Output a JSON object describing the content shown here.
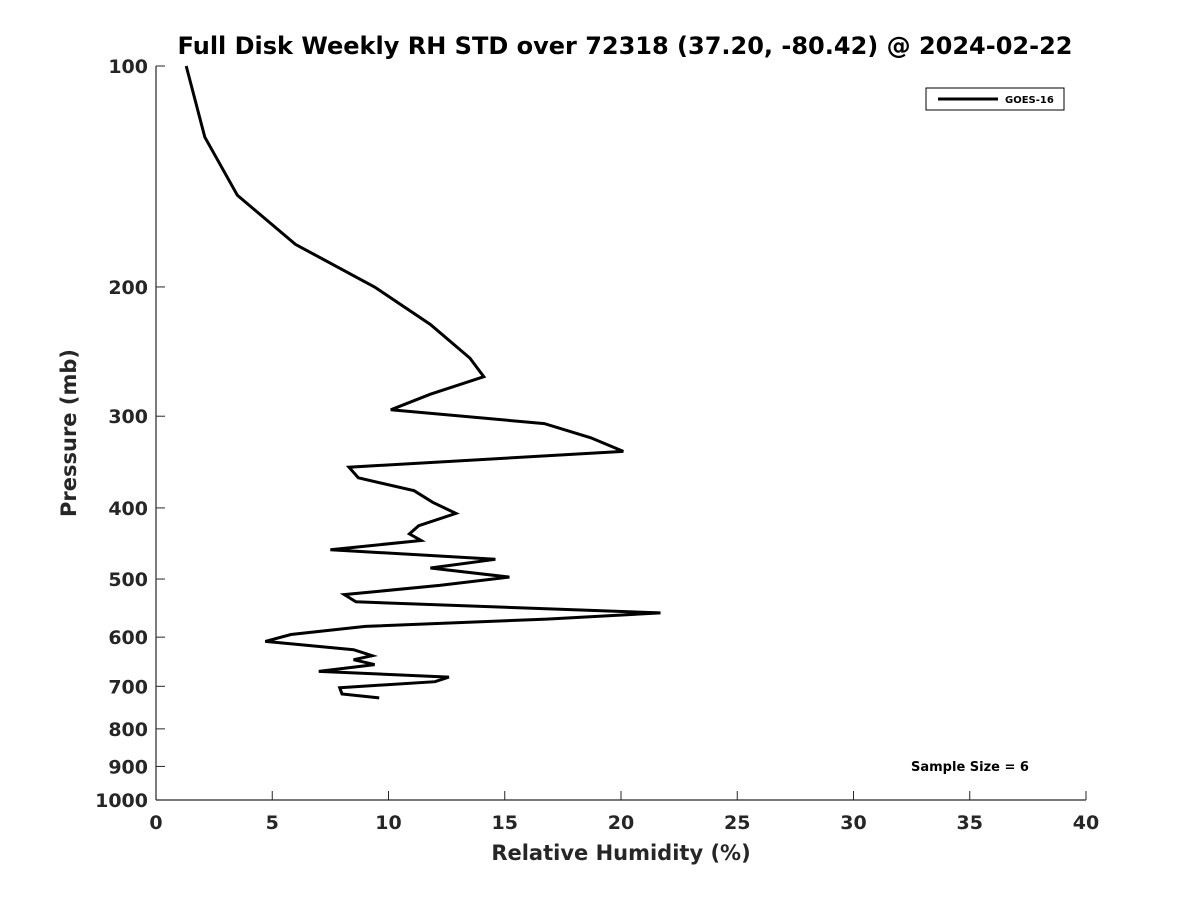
{
  "chart_data": {
    "type": "line",
    "title": "Full Disk Weekly RH STD over 72318 (37.20, -80.42) @ 2024-02-22",
    "xlabel": "Relative Humidity (%)",
    "ylabel": "Pressure (mb)",
    "xlim": [
      0,
      40
    ],
    "ylim": [
      100,
      1000
    ],
    "yscale": "log",
    "y_reversed": true,
    "grid": false,
    "legend_position": "top-right",
    "x_ticks": [
      0,
      5,
      10,
      15,
      20,
      25,
      30,
      35,
      40
    ],
    "x_tick_labels": [
      "0",
      "5",
      "10",
      "15",
      "20",
      "25",
      "30",
      "35",
      "40"
    ],
    "y_ticks": [
      100,
      200,
      300,
      400,
      500,
      600,
      700,
      800,
      900,
      1000
    ],
    "y_tick_labels": [
      "100",
      "200",
      "300",
      "400",
      "500",
      "600",
      "700",
      "800",
      "900",
      "1000"
    ],
    "annotation": "Sample Size = 6",
    "series": [
      {
        "name": "GOES-16",
        "color": "#000000",
        "points": [
          [
            1.3,
            100
          ],
          [
            2.1,
            125
          ],
          [
            3.5,
            150
          ],
          [
            6.0,
            175
          ],
          [
            9.4,
            200
          ],
          [
            11.8,
            225
          ],
          [
            13.5,
            250
          ],
          [
            14.1,
            265
          ],
          [
            11.8,
            280
          ],
          [
            10.1,
            294
          ],
          [
            16.7,
            307
          ],
          [
            18.7,
            321
          ],
          [
            20.1,
            335
          ],
          [
            8.3,
            352
          ],
          [
            8.7,
            364
          ],
          [
            11.1,
            379
          ],
          [
            11.9,
            393
          ],
          [
            12.9,
            407
          ],
          [
            11.3,
            423
          ],
          [
            10.9,
            434
          ],
          [
            11.4,
            443
          ],
          [
            7.5,
            456
          ],
          [
            14.6,
            470
          ],
          [
            11.8,
            483
          ],
          [
            15.2,
            497
          ],
          [
            12.2,
            510
          ],
          [
            8.1,
            525
          ],
          [
            8.6,
            537
          ],
          [
            21.7,
            556
          ],
          [
            16.8,
            567
          ],
          [
            9.0,
            580
          ],
          [
            5.8,
            595
          ],
          [
            4.7,
            608
          ],
          [
            8.5,
            624
          ],
          [
            9.3,
            636
          ],
          [
            8.5,
            644
          ],
          [
            9.4,
            654
          ],
          [
            7.0,
            668
          ],
          [
            12.6,
            680
          ],
          [
            12.0,
            690
          ],
          [
            7.9,
            703
          ],
          [
            8.0,
            717
          ],
          [
            9.6,
            726
          ]
        ]
      }
    ]
  }
}
